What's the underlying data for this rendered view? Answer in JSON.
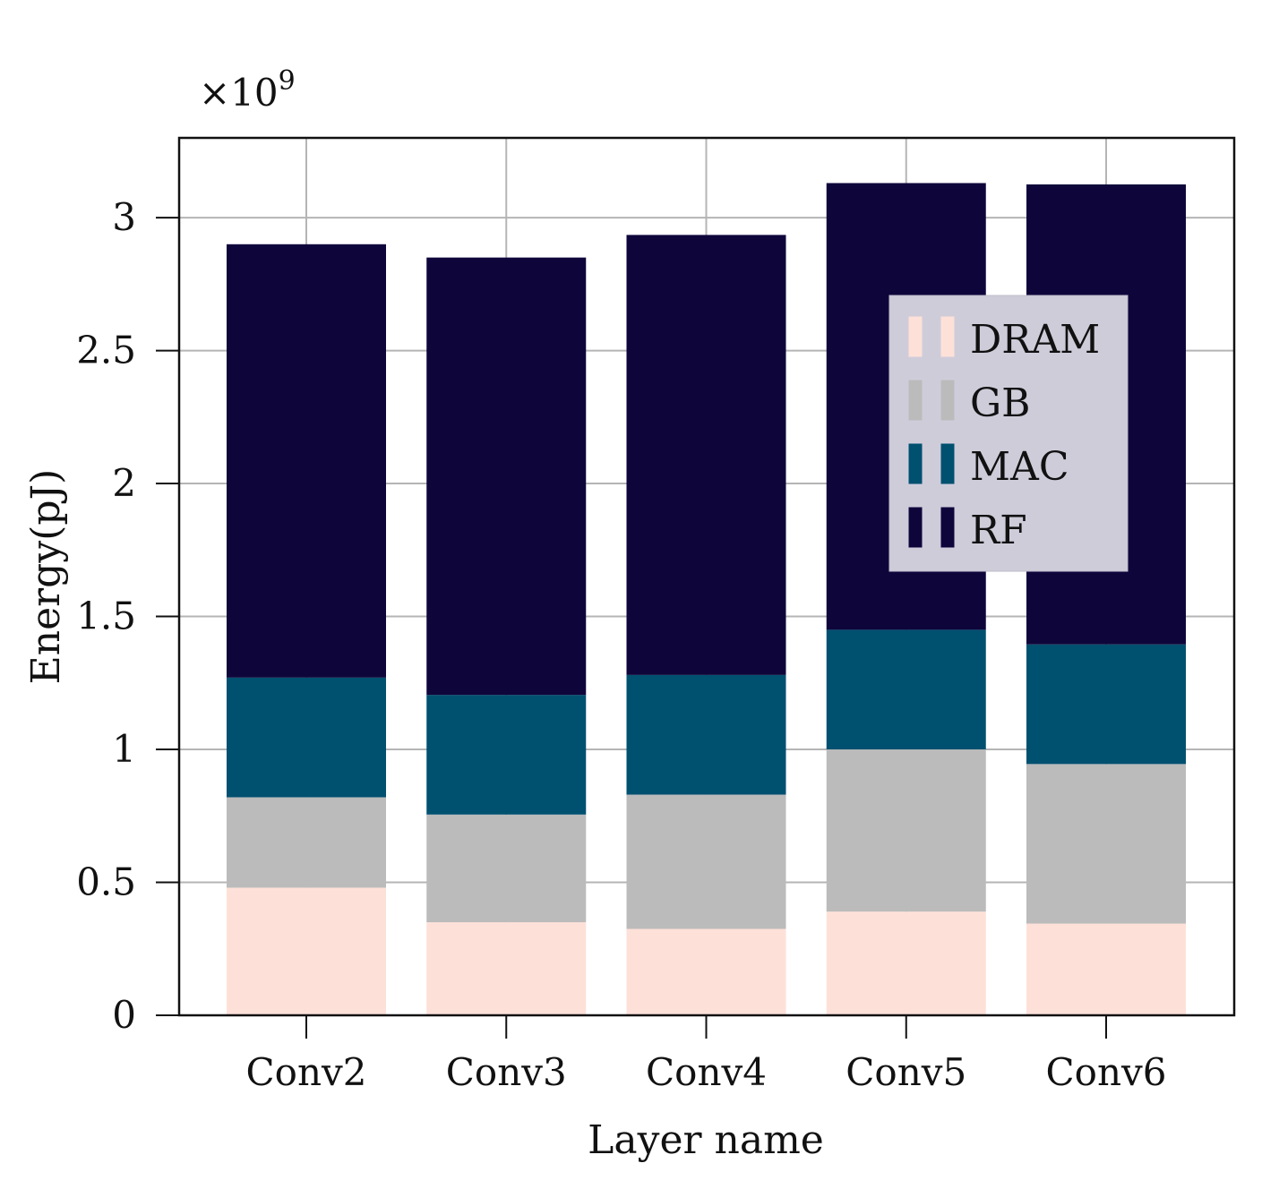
{
  "chart_data": {
    "type": "bar",
    "stacked": true,
    "title": "",
    "xlabel": "Layer name",
    "ylabel": "Energy(pJ)",
    "y_multiplier": "×10",
    "y_multiplier_exponent": "9",
    "ylim": [
      0,
      3.3
    ],
    "yticks": [
      0,
      0.5,
      1,
      1.5,
      2,
      2.5,
      3
    ],
    "ytick_labels": [
      "0",
      "0.5",
      "1",
      "1.5",
      "2",
      "2.5",
      "3"
    ],
    "grid": true,
    "legend_position": "top-right",
    "categories": [
      "Conv2",
      "Conv3",
      "Conv4",
      "Conv5",
      "Conv6"
    ],
    "series": [
      {
        "name": "DRAM",
        "color": "#fde1d8",
        "values": [
          0.48,
          0.35,
          0.325,
          0.39,
          0.345
        ]
      },
      {
        "name": "GB",
        "color": "#bbbbbb",
        "values": [
          0.34,
          0.405,
          0.505,
          0.61,
          0.6
        ]
      },
      {
        "name": "MAC",
        "color": "#005070",
        "values": [
          0.45,
          0.45,
          0.45,
          0.45,
          0.45
        ]
      },
      {
        "name": "RF",
        "color": "#0e063b",
        "values": [
          1.63,
          1.645,
          1.655,
          1.68,
          1.73
        ]
      }
    ]
  }
}
